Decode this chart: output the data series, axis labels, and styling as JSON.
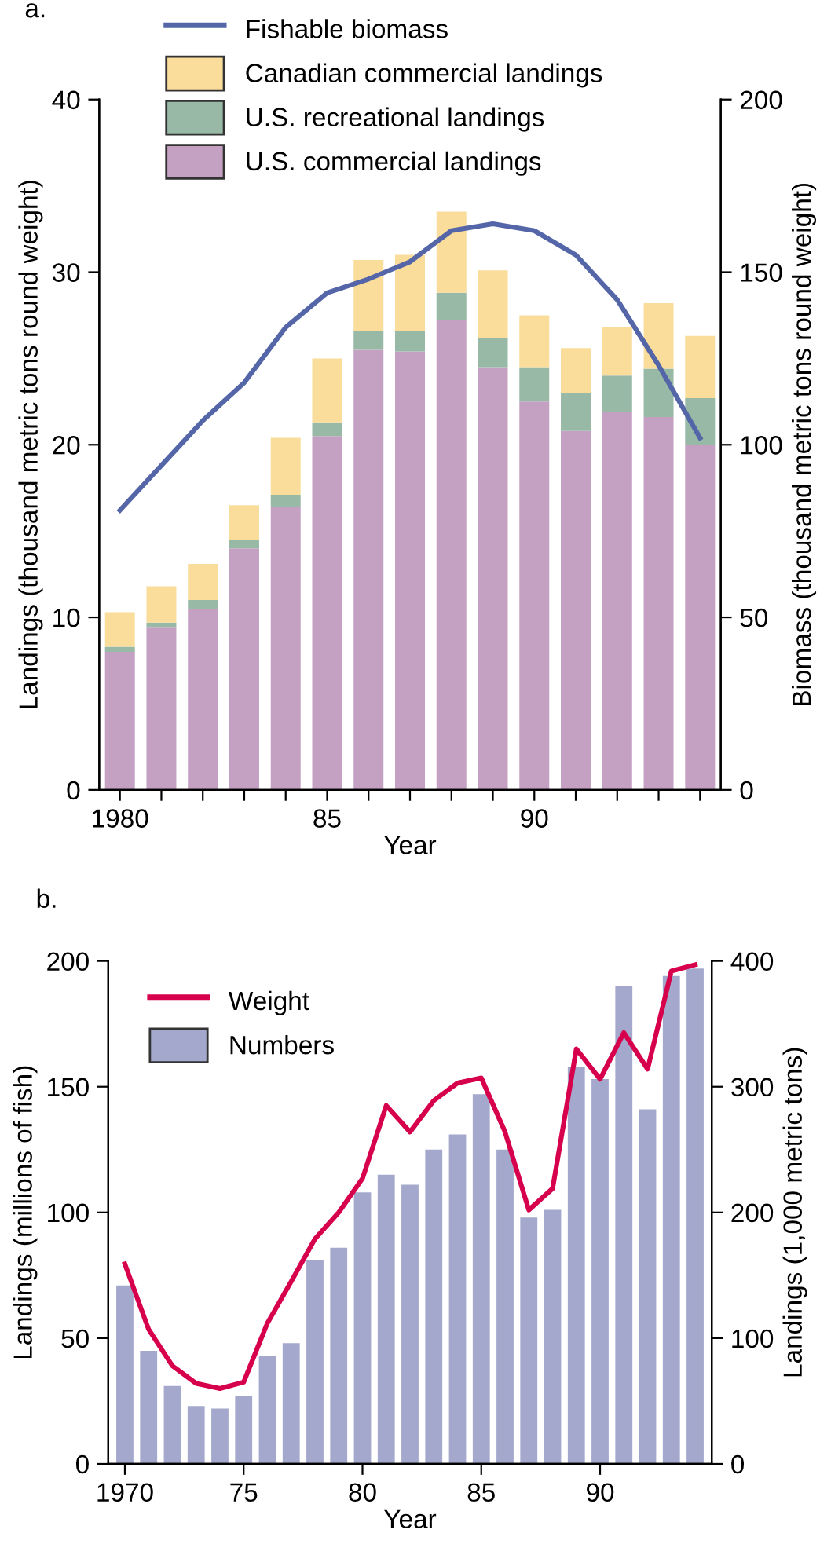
{
  "chart_data": [
    {
      "type": "bar",
      "title": "a.",
      "xlabel": "Year",
      "ylabel": "Landings (thousand metric tons round weight)",
      "y2label": "Biomass (thousand metric tons round weight)",
      "stacked": true,
      "legend": "top left",
      "x": [
        1980,
        1981,
        1982,
        1983,
        1984,
        1985,
        1986,
        1987,
        1988,
        1989,
        1990,
        1991,
        1992,
        1993,
        1994
      ],
      "xlim": [
        1979.5,
        1994.5
      ],
      "xticks": [
        {
          "value": 1980,
          "label": "1980"
        },
        {
          "value": 1981,
          "label": null
        },
        {
          "value": 1982,
          "label": null
        },
        {
          "value": 1983,
          "label": null
        },
        {
          "value": 1984,
          "label": null
        },
        {
          "value": 1985,
          "label": "85"
        },
        {
          "value": 1986,
          "label": null
        },
        {
          "value": 1987,
          "label": null
        },
        {
          "value": 1988,
          "label": null
        },
        {
          "value": 1989,
          "label": null
        },
        {
          "value": 1990,
          "label": "90"
        },
        {
          "value": 1991,
          "label": null
        },
        {
          "value": 1992,
          "label": null
        },
        {
          "value": 1993,
          "label": null
        },
        {
          "value": 1994,
          "label": null
        }
      ],
      "ylim": [
        0,
        40
      ],
      "yticks": [
        0,
        10,
        20,
        30,
        40
      ],
      "y2lim": [
        0,
        200
      ],
      "y2ticks": [
        0,
        50,
        100,
        150,
        200
      ],
      "series": [
        {
          "name": "U.S. commercial landings",
          "color": "#c4a0c2",
          "values": [
            8.0,
            9.4,
            10.5,
            14.0,
            16.4,
            20.5,
            25.5,
            25.4,
            27.2,
            24.5,
            22.5,
            20.8,
            21.9,
            21.6,
            20.0
          ]
        },
        {
          "name": "U.S. recreational landings",
          "color": "#97b9a6",
          "values": [
            0.3,
            0.3,
            0.5,
            0.5,
            0.7,
            0.8,
            1.1,
            1.2,
            1.6,
            1.7,
            2.0,
            2.2,
            2.1,
            2.8,
            2.7
          ]
        },
        {
          "name": "Canadian commercial landings",
          "color": "#fadc9b",
          "values": [
            2.0,
            2.1,
            2.1,
            2.0,
            3.3,
            3.7,
            4.1,
            4.4,
            4.7,
            3.9,
            3.0,
            2.6,
            2.8,
            3.8,
            3.6
          ]
        },
        {
          "name": "Fishable biomass",
          "type": "line",
          "axis": "y2",
          "color": "#5566a8",
          "values": [
            81,
            94,
            107,
            118,
            134,
            144,
            148,
            153,
            162,
            164,
            162,
            155,
            142,
            123,
            102
          ]
        }
      ]
    },
    {
      "type": "bar",
      "title": "b.",
      "xlabel": "Year",
      "ylabel": "Landings (millions of fish)",
      "y2label": "Landings (1,000 metric tons)",
      "legend": "top left",
      "x": [
        1970,
        1971,
        1972,
        1973,
        1974,
        1975,
        1976,
        1977,
        1978,
        1979,
        1980,
        1981,
        1982,
        1983,
        1984,
        1985,
        1986,
        1987,
        1988,
        1989,
        1990,
        1991,
        1992,
        1993,
        1994
      ],
      "xlim": [
        1969.3,
        1994.7
      ],
      "xticks": [
        {
          "value": 1970,
          "label": "1970"
        },
        {
          "value": 1975,
          "label": "75"
        },
        {
          "value": 1980,
          "label": "80"
        },
        {
          "value": 1985,
          "label": "85"
        },
        {
          "value": 1990,
          "label": "90"
        }
      ],
      "ylim": [
        0,
        200
      ],
      "yticks": [
        0,
        50,
        100,
        150,
        200
      ],
      "y2lim": [
        0,
        400
      ],
      "y2ticks": [
        0,
        100,
        200,
        300,
        400
      ],
      "series": [
        {
          "name": "Numbers",
          "color": "#a4a8cc",
          "values": [
            71,
            45,
            31,
            23,
            22,
            27,
            43,
            48,
            81,
            86,
            108,
            115,
            111,
            125,
            131,
            147,
            125,
            98,
            101,
            158,
            153,
            190,
            141,
            194,
            197
          ]
        },
        {
          "name": "Weight",
          "type": "line",
          "axis": "y2",
          "color": "#d6004c",
          "values": [
            159,
            107,
            78,
            64,
            60,
            65,
            112,
            145,
            179,
            200,
            227,
            285,
            264,
            289,
            303,
            307,
            264,
            202,
            219,
            330,
            306,
            343,
            314,
            392,
            397
          ]
        }
      ]
    }
  ]
}
